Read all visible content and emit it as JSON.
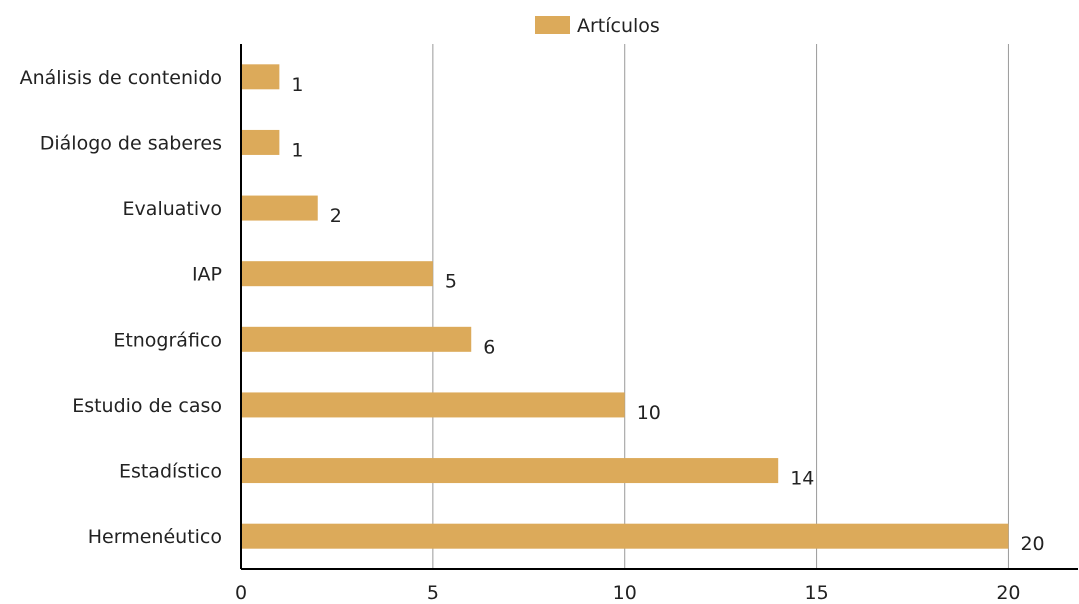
{
  "chart_data": {
    "type": "bar",
    "orientation": "horizontal",
    "categories": [
      "Análisis de contenido",
      "Diálogo de saberes",
      "Evaluativo",
      "IAP",
      "Etnográfico",
      "Estudio de caso",
      "Estadístico",
      "Hermenéutico"
    ],
    "series": [
      {
        "name": "Artículos",
        "color": "#dcaa5a",
        "values": [
          1,
          1,
          2,
          5,
          6,
          10,
          14,
          20
        ]
      }
    ],
    "xlim": [
      0,
      21.5
    ],
    "xticks": [
      0,
      5,
      10,
      15,
      20
    ],
    "xtick_labels": [
      "0",
      "5",
      "10",
      "15",
      "20"
    ],
    "value_labels": [
      "1",
      "1",
      "2",
      "5",
      "6",
      "10",
      "14",
      "20"
    ],
    "grid": "vertical",
    "legend": "top-center"
  }
}
